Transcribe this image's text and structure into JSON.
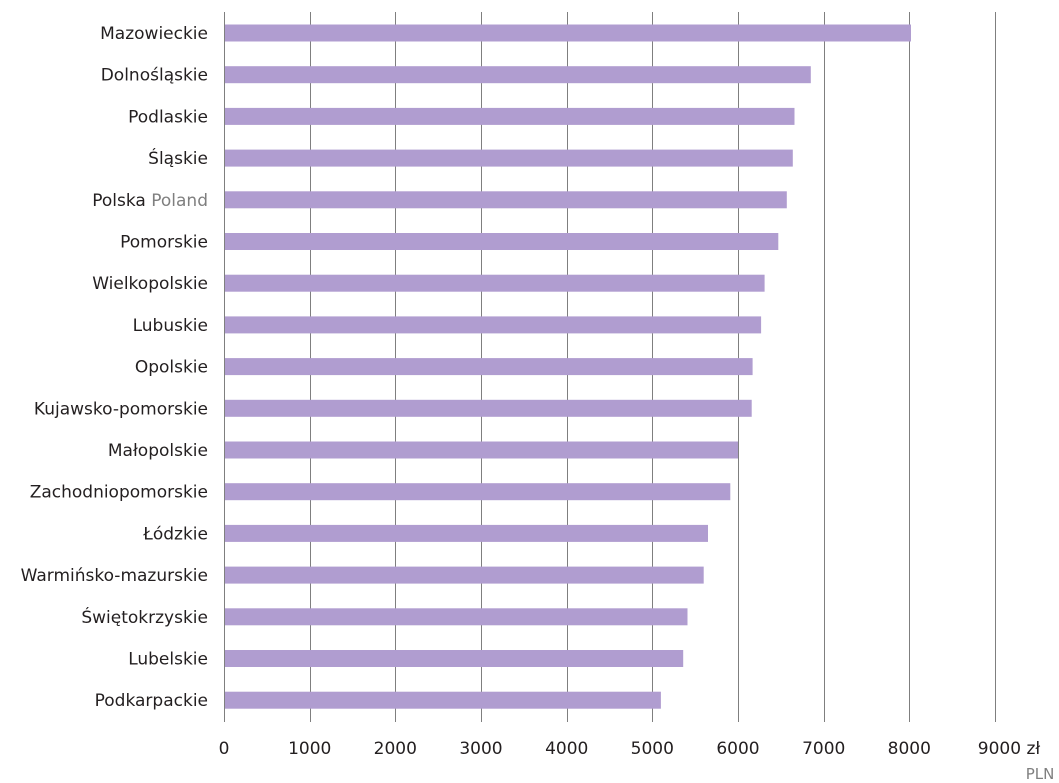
{
  "chart_data": {
    "type": "bar",
    "orientation": "horizontal",
    "categories": [
      "Mazowieckie",
      "Dolnośląskie",
      "Podlaskie",
      "Śląskie",
      "Polska Poland",
      "Pomorskie",
      "Wielkopolskie",
      "Lubuskie",
      "Opolskie",
      "Kujawsko-pomorskie",
      "Małopolskie",
      "Zachodniopomorskie",
      "Łódzkie",
      "Warmińsko-mazurskie",
      "Świętokrzyskie",
      "Lubelskie",
      "Podkarpackie"
    ],
    "category_labels": [
      {
        "main": "Mazowieckie",
        "secondary": ""
      },
      {
        "main": "Dolnośląskie",
        "secondary": ""
      },
      {
        "main": "Podlaskie",
        "secondary": ""
      },
      {
        "main": "Śląskie",
        "secondary": ""
      },
      {
        "main": "Polska",
        "secondary": "Poland"
      },
      {
        "main": "Pomorskie",
        "secondary": ""
      },
      {
        "main": "Wielkopolskie",
        "secondary": ""
      },
      {
        "main": "Lubuskie",
        "secondary": ""
      },
      {
        "main": "Opolskie",
        "secondary": ""
      },
      {
        "main": "Kujawsko-pomorskie",
        "secondary": ""
      },
      {
        "main": "Małopolskie",
        "secondary": ""
      },
      {
        "main": "Zachodniopomorskie",
        "secondary": ""
      },
      {
        "main": "Łódzkie",
        "secondary": ""
      },
      {
        "main": "Warmińsko-mazurskie",
        "secondary": ""
      },
      {
        "main": "Świętokrzyskie",
        "secondary": ""
      },
      {
        "main": "Lubelskie",
        "secondary": ""
      },
      {
        "main": "Podkarpackie",
        "secondary": ""
      }
    ],
    "values": [
      8020,
      6850,
      6660,
      6640,
      6570,
      6470,
      6310,
      6270,
      6170,
      6160,
      6000,
      5910,
      5650,
      5600,
      5410,
      5360,
      5100
    ],
    "xlim": [
      0,
      9000
    ],
    "x_ticks": [
      "0",
      "1000",
      "2000",
      "3000",
      "4000",
      "5000",
      "6000",
      "7000",
      "8000",
      "9000"
    ],
    "x_unit": "zł",
    "x_unit_secondary": "PLN",
    "title": "",
    "xlabel": "",
    "ylabel": "",
    "grid": "vertical",
    "legend": "none",
    "colors": {
      "bar": "#b09dd0",
      "grid": "#7f7f7f",
      "text": "#231f20",
      "secondary_text": "#7f7f7f"
    }
  }
}
